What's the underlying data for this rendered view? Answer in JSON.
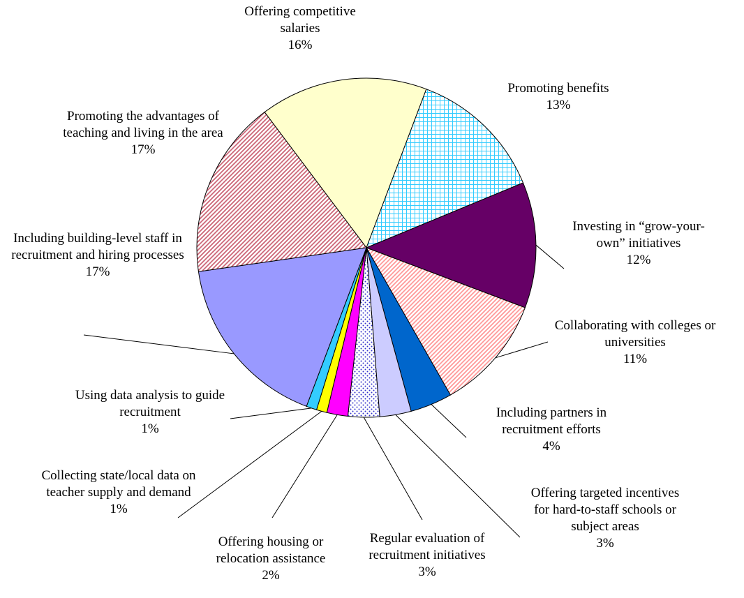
{
  "chart_data": {
    "type": "pie",
    "categories": [
      "Offering competitive salaries",
      "Promoting benefits",
      "Investing in “grow-your-own” initiatives",
      "Collaborating with colleges or universities",
      "Including partners in recruitment efforts",
      "Offering targeted incentives for hard-to-staff schools or subject areas",
      "Regular evaluation of recruitment initiatives",
      "Offering housing or relocation assistance",
      "Collecting state/local data on teacher supply and demand",
      "Using data analysis to guide recruitment",
      "Including building-level staff in recruitment and hiring processes",
      "Promoting the advantages of teaching and living in the area"
    ],
    "values": [
      16,
      13,
      12,
      11,
      4,
      3,
      3,
      2,
      1,
      1,
      17,
      17
    ],
    "value_labels": [
      "16%",
      "13%",
      "12%",
      "11%",
      "4%",
      "3%",
      "3%",
      "2%",
      "1%",
      "1%",
      "17%",
      "17%"
    ],
    "colors": [
      "#ffffcc",
      "#33ccff",
      "#660066",
      "#ff9999",
      "#0066cc",
      "#ccccff",
      "#3333cc",
      "#ff00ff",
      "#ffff00",
      "#33ccff",
      "#9999ff",
      "#cc6677"
    ],
    "patterns": [
      null,
      "grid",
      null,
      "hatch",
      null,
      null,
      "dots",
      null,
      null,
      null,
      null,
      "hatch"
    ]
  }
}
